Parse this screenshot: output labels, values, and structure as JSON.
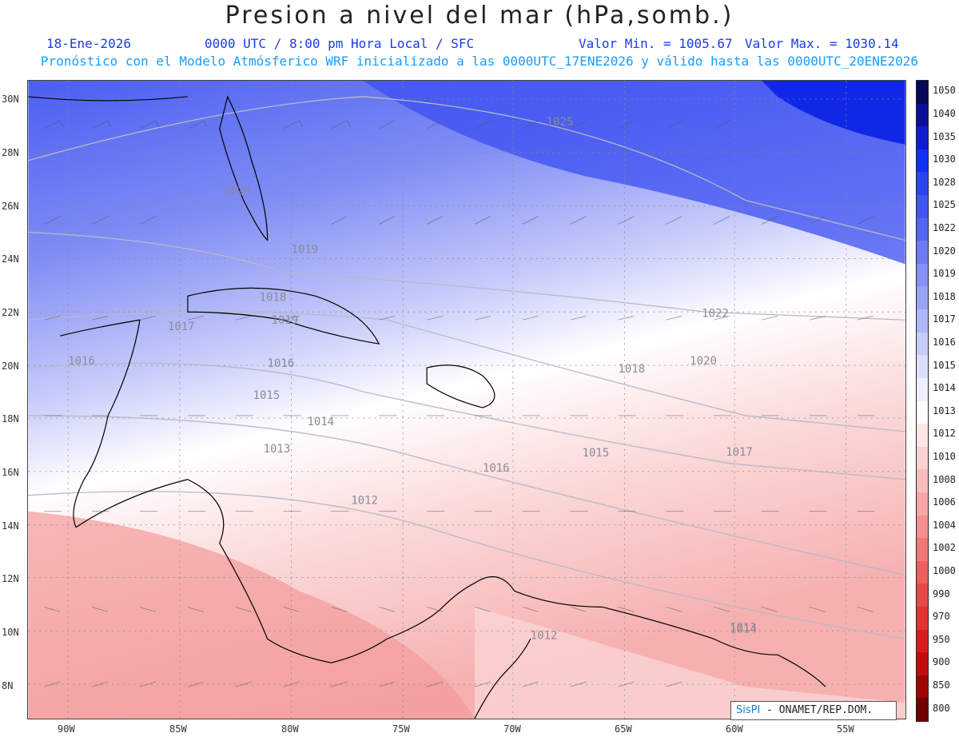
{
  "header": {
    "title": "Presion a nivel del mar (hPa,somb.)",
    "date": "18-Ene-2026",
    "time": "0000 UTC / 8:00 pm Hora Local / SFC",
    "min_label": "Valor Min. = 1005.67",
    "max_label": "Valor Max. = 1030.14",
    "subtitle": "Pronóstico con el Modelo Atmósferico WRF inicializado a las 0000UTC_17ENE2026 y válido hasta las  0000UTC_20ENE2026"
  },
  "axes": {
    "lat_labels": [
      "30N",
      "28N",
      "26N",
      "24N",
      "22N",
      "20N",
      "18N",
      "16N",
      "14N",
      "12N",
      "10N",
      "8N"
    ],
    "lon_labels": [
      "90W",
      "85W",
      "80W",
      "75W",
      "70W",
      "65W",
      "60W",
      "55W"
    ]
  },
  "contour_labels": [
    "1025",
    "1022",
    "1020",
    "1020",
    "1019",
    "1019",
    "1018",
    "1018",
    "1017",
    "1017",
    "1016",
    "1016",
    "1016",
    "1015",
    "1015",
    "1014",
    "1014",
    "1013",
    "1013",
    "1012",
    "1012"
  ],
  "colorbar": {
    "levels": [
      "1050",
      "1040",
      "1035",
      "1030",
      "1028",
      "1025",
      "1022",
      "1020",
      "1019",
      "1018",
      "1017",
      "1016",
      "1015",
      "1014",
      "1013",
      "1012",
      "1010",
      "1008",
      "1006",
      "1004",
      "1002",
      "1000",
      "990",
      "970",
      "950",
      "900",
      "850",
      "800"
    ],
    "colors": [
      "#08085a",
      "#0a0f96",
      "#0f1cd0",
      "#1030f4",
      "#2a44f2",
      "#4156f0",
      "#5566f0",
      "#6e7cf2",
      "#8591f4",
      "#9aa4f6",
      "#b0b7f8",
      "#c6ccfa",
      "#dcdffc",
      "#eeeffe",
      "#ffffff",
      "#fde6e6",
      "#fad2d2",
      "#f8bcbc",
      "#f6a6a6",
      "#f39090",
      "#f07878",
      "#ec6060",
      "#e84848",
      "#e23232",
      "#d81c1c",
      "#c20c0c",
      "#a00404",
      "#6e0000"
    ]
  },
  "badge": {
    "brand": "SisPI",
    "text": "- ONAMET/REP.DOM."
  }
}
